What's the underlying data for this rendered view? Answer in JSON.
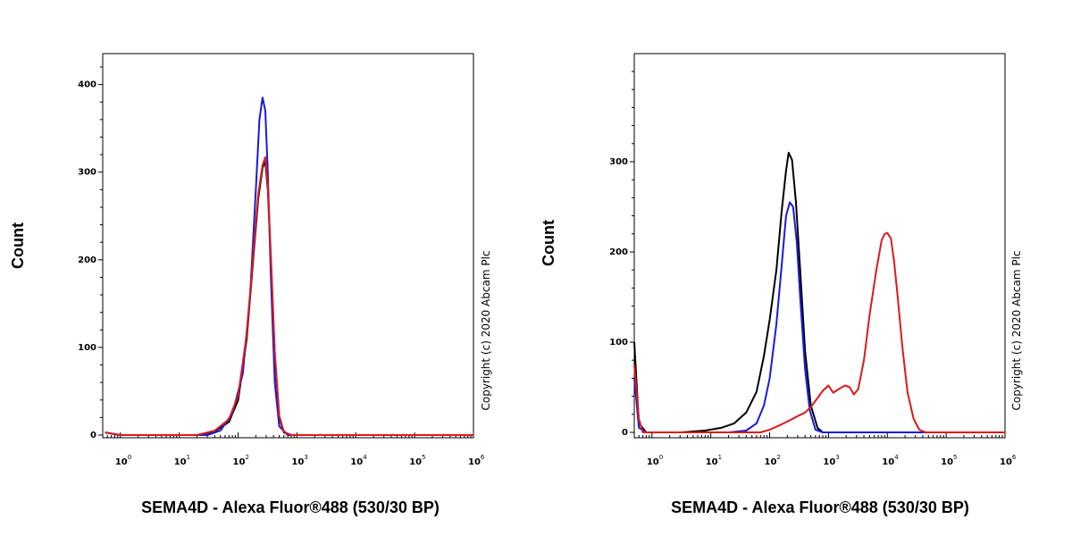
{
  "chart_data": [
    {
      "type": "line",
      "xscale": "log",
      "xlim": [
        0.5,
        1000000
      ],
      "ylim": [
        0,
        420
      ],
      "x_ticks": [
        1,
        10,
        100,
        1000,
        10000,
        100000,
        1000000
      ],
      "x_tick_labels": [
        {
          "base": "10",
          "exp": "0"
        },
        {
          "base": "10",
          "exp": "1"
        },
        {
          "base": "10",
          "exp": "2"
        },
        {
          "base": "10",
          "exp": "3"
        },
        {
          "base": "10",
          "exp": "4"
        },
        {
          "base": "10",
          "exp": "5"
        },
        {
          "base": "10",
          "exp": "6"
        }
      ],
      "y_ticks": [
        0,
        100,
        200,
        300,
        400
      ],
      "y_tick_labels": [
        "0",
        "100",
        "200",
        "300",
        "400"
      ],
      "xlabel": "SEMA4D - Alexa Fluor®488 (530/30 BP)",
      "ylabel": "Count",
      "copyright": "Copyright (c) 2020 Abcam Plc",
      "series": [
        {
          "color": "#000000",
          "points": [
            [
              0.55,
              3
            ],
            [
              1,
              0
            ],
            [
              20,
              0
            ],
            [
              40,
              4
            ],
            [
              70,
              15
            ],
            [
              100,
              40
            ],
            [
              140,
              110
            ],
            [
              180,
              200
            ],
            [
              220,
              270
            ],
            [
              260,
              305
            ],
            [
              290,
              312
            ],
            [
              320,
              280
            ],
            [
              360,
              200
            ],
            [
              420,
              90
            ],
            [
              500,
              20
            ],
            [
              600,
              3
            ],
            [
              800,
              0
            ],
            [
              1000000,
              0
            ]
          ]
        },
        {
          "color": "#1a1adc",
          "points": [
            [
              0.55,
              3
            ],
            [
              1,
              0
            ],
            [
              30,
              0
            ],
            [
              50,
              5
            ],
            [
              80,
              25
            ],
            [
              120,
              70
            ],
            [
              160,
              160
            ],
            [
              200,
              280
            ],
            [
              230,
              360
            ],
            [
              260,
              385
            ],
            [
              290,
              370
            ],
            [
              320,
              300
            ],
            [
              360,
              180
            ],
            [
              420,
              60
            ],
            [
              500,
              10
            ],
            [
              700,
              0
            ],
            [
              1000000,
              0
            ]
          ]
        },
        {
          "color": "#dc1a1a",
          "points": [
            [
              0.55,
              3
            ],
            [
              1,
              0
            ],
            [
              20,
              0
            ],
            [
              40,
              5
            ],
            [
              70,
              18
            ],
            [
              100,
              45
            ],
            [
              140,
              115
            ],
            [
              180,
              205
            ],
            [
              220,
              275
            ],
            [
              260,
              308
            ],
            [
              290,
              317
            ],
            [
              320,
              285
            ],
            [
              360,
              205
            ],
            [
              420,
              95
            ],
            [
              500,
              22
            ],
            [
              600,
              4
            ],
            [
              800,
              0
            ],
            [
              1000000,
              0
            ]
          ]
        }
      ]
    },
    {
      "type": "line",
      "xscale": "log",
      "xlim": [
        0.5,
        1000000
      ],
      "ylim": [
        0,
        400
      ],
      "x_ticks": [
        1,
        10,
        100,
        1000,
        10000,
        100000,
        1000000
      ],
      "x_tick_labels": [
        {
          "base": "10",
          "exp": "0"
        },
        {
          "base": "10",
          "exp": "1"
        },
        {
          "base": "10",
          "exp": "2"
        },
        {
          "base": "10",
          "exp": "3"
        },
        {
          "base": "10",
          "exp": "4"
        },
        {
          "base": "10",
          "exp": "5"
        },
        {
          "base": "10",
          "exp": "6"
        }
      ],
      "y_ticks": [
        0,
        100,
        200,
        300
      ],
      "y_tick_labels": [
        "0",
        "100",
        "200",
        "300"
      ],
      "xlabel": "SEMA4D - Alexa Fluor®488 (530/30 BP)",
      "ylabel": "Count",
      "copyright": "Copyright (c) 2020 Abcam Plc",
      "series": [
        {
          "color": "#000000",
          "points": [
            [
              0.5,
              100
            ],
            [
              0.6,
              10
            ],
            [
              0.8,
              0
            ],
            [
              3,
              0
            ],
            [
              8,
              2
            ],
            [
              15,
              5
            ],
            [
              25,
              10
            ],
            [
              40,
              22
            ],
            [
              60,
              45
            ],
            [
              80,
              85
            ],
            [
              100,
              125
            ],
            [
              130,
              180
            ],
            [
              160,
              245
            ],
            [
              190,
              290
            ],
            [
              210,
              310
            ],
            [
              240,
              302
            ],
            [
              280,
              255
            ],
            [
              330,
              180
            ],
            [
              400,
              90
            ],
            [
              500,
              30
            ],
            [
              650,
              5
            ],
            [
              800,
              0
            ],
            [
              1000000,
              0
            ]
          ]
        },
        {
          "color": "#1a1adc",
          "points": [
            [
              0.5,
              60
            ],
            [
              0.6,
              5
            ],
            [
              0.8,
              0
            ],
            [
              20,
              0
            ],
            [
              40,
              2
            ],
            [
              60,
              10
            ],
            [
              80,
              30
            ],
            [
              100,
              60
            ],
            [
              130,
              120
            ],
            [
              160,
              185
            ],
            [
              190,
              240
            ],
            [
              220,
              255
            ],
            [
              250,
              250
            ],
            [
              290,
              210
            ],
            [
              330,
              150
            ],
            [
              400,
              70
            ],
            [
              480,
              25
            ],
            [
              600,
              3
            ],
            [
              800,
              0
            ],
            [
              1000000,
              0
            ]
          ]
        },
        {
          "color": "#dc1a1a",
          "points": [
            [
              0.5,
              75
            ],
            [
              0.6,
              15
            ],
            [
              0.7,
              0
            ],
            [
              70,
              0
            ],
            [
              100,
              3
            ],
            [
              150,
              8
            ],
            [
              200,
              12
            ],
            [
              300,
              18
            ],
            [
              400,
              22
            ],
            [
              500,
              28
            ],
            [
              650,
              38
            ],
            [
              800,
              46
            ],
            [
              1000,
              52
            ],
            [
              1200,
              44
            ],
            [
              1500,
              48
            ],
            [
              1900,
              52
            ],
            [
              2300,
              50
            ],
            [
              2700,
              42
            ],
            [
              3200,
              48
            ],
            [
              4000,
              80
            ],
            [
              5000,
              130
            ],
            [
              6500,
              180
            ],
            [
              8000,
              213
            ],
            [
              9000,
              220
            ],
            [
              10000,
              221
            ],
            [
              11500,
              215
            ],
            [
              13000,
              190
            ],
            [
              15000,
              150
            ],
            [
              18000,
              95
            ],
            [
              22000,
              45
            ],
            [
              28000,
              15
            ],
            [
              35000,
              3
            ],
            [
              45000,
              0
            ],
            [
              1000000,
              0
            ]
          ]
        }
      ]
    }
  ]
}
